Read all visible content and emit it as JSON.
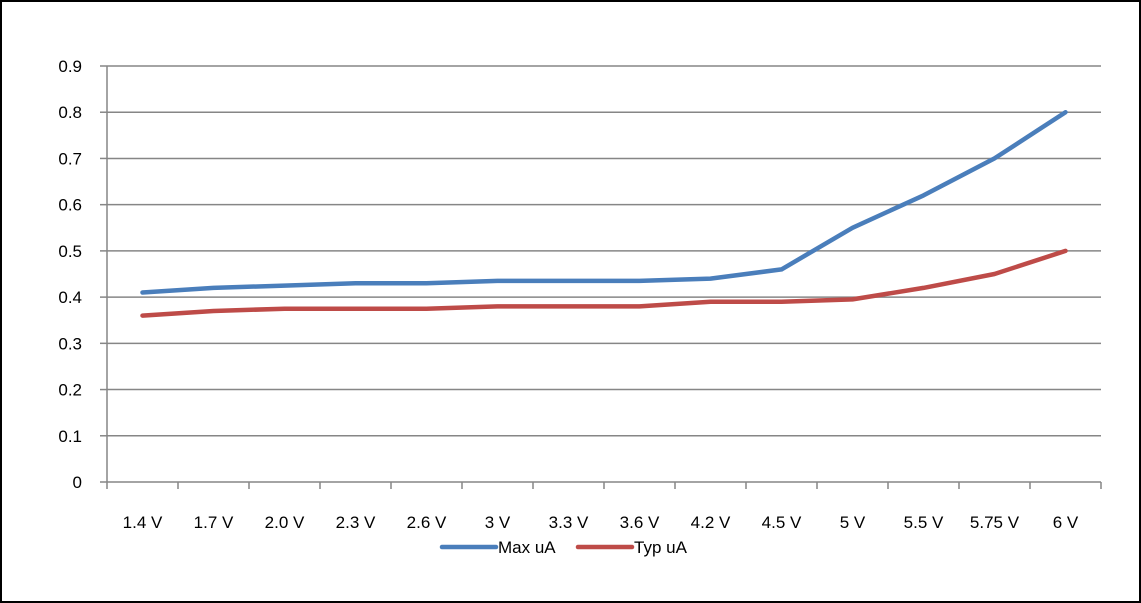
{
  "chart_data": {
    "type": "line",
    "categories": [
      "1.4 V",
      "1.7 V",
      "2.0 V",
      "2.3 V",
      "2.6 V",
      "3 V",
      "3.3 V",
      "3.6 V",
      "4.2 V",
      "4.5 V",
      "5 V",
      "5.5 V",
      "5.75 V",
      "6 V"
    ],
    "series": [
      {
        "name": "Max uA",
        "color": "#4a7ebb",
        "values": [
          0.41,
          0.42,
          0.425,
          0.43,
          0.43,
          0.435,
          0.435,
          0.435,
          0.44,
          0.46,
          0.55,
          0.62,
          0.7,
          0.8
        ]
      },
      {
        "name": "Typ uA",
        "color": "#be4b48",
        "values": [
          0.36,
          0.37,
          0.375,
          0.375,
          0.375,
          0.38,
          0.38,
          0.38,
          0.39,
          0.39,
          0.395,
          0.42,
          0.45,
          0.5
        ]
      }
    ],
    "title": "",
    "xlabel": "",
    "ylabel": "",
    "ylim": [
      0,
      0.9
    ],
    "yticks": [
      "0",
      "0.1",
      "0.2",
      "0.3",
      "0.4",
      "0.5",
      "0.6",
      "0.7",
      "0.8",
      "0.9"
    ],
    "grid": true,
    "legend_position": "bottom"
  }
}
